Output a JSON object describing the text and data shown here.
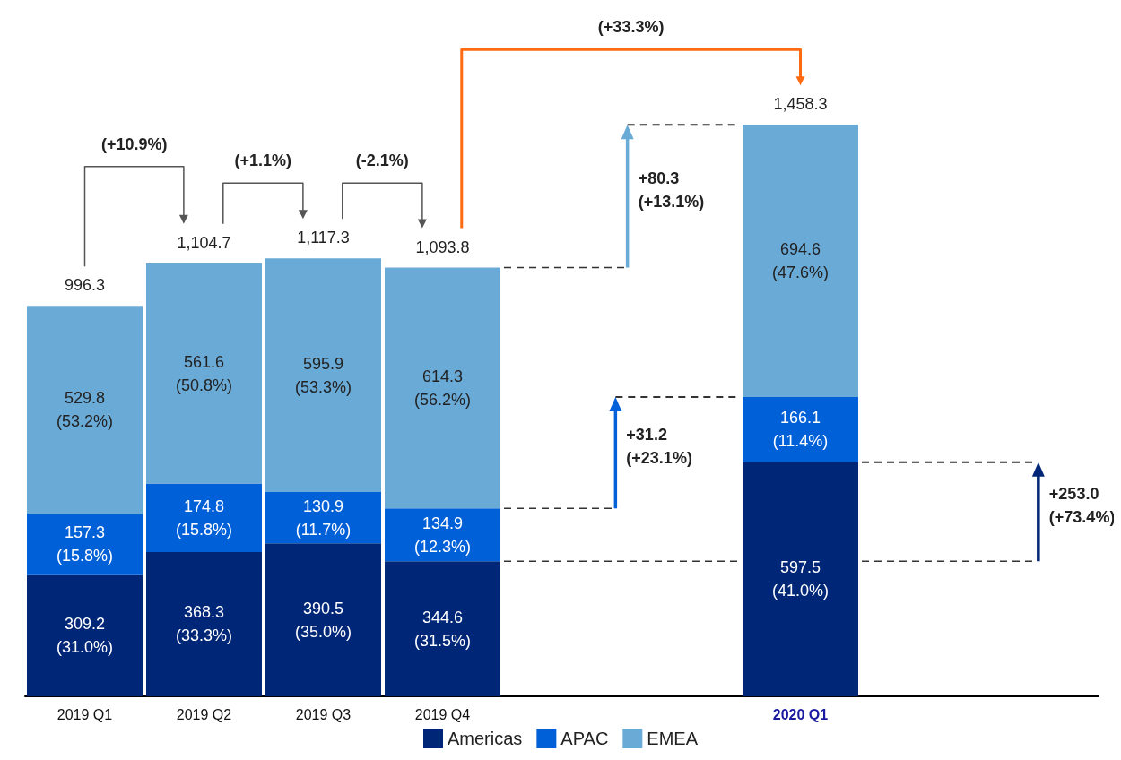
{
  "chart_data": {
    "type": "bar",
    "stacked": true,
    "legend": "bottom",
    "categories": [
      "2019 Q1",
      "2019 Q2",
      "2019 Q3",
      "2019 Q4",
      null,
      null,
      "2020 Q1",
      null,
      null
    ],
    "series": [
      {
        "name": "Americas",
        "color": "#002677",
        "values": [
          309.2,
          368.3,
          390.5,
          344.6,
          null,
          null,
          597.5,
          null,
          null
        ],
        "value_labels": [
          "309.2\n(31.0%)",
          "368.3\n(33.3%)",
          "390.5\n(35.0%)",
          "344.6\n(31.5%)",
          null,
          null,
          "597.5\n(41.0%)",
          null,
          null
        ]
      },
      {
        "name": "APAC",
        "color": "#0060d8",
        "values": [
          157.3,
          174.8,
          130.9,
          134.9,
          null,
          null,
          166.1,
          null,
          null
        ],
        "value_labels": [
          "157.3\n(15.8%)",
          "174.8\n(15.8%)",
          "130.9\n(11.7%)",
          "134.9\n(12.3%)",
          null,
          null,
          "166.1\n(11.4%)",
          null,
          null
        ]
      },
      {
        "name": "EMEA",
        "color": "#6aaad6",
        "values": [
          529.8,
          561.6,
          595.9,
          614.3,
          null,
          null,
          694.6,
          null,
          null
        ],
        "value_labels": [
          "529.8\n(53.2%)",
          "561.6\n(50.8%)",
          "595.9\n(53.3%)",
          "614.3\n(56.2%)",
          null,
          null,
          "694.6\n(47.6%)",
          null,
          null
        ]
      }
    ],
    "totals": [
      "996.3",
      "1,104.7",
      "1,117.3",
      "1,093.8",
      null,
      null,
      "1,458.3",
      null,
      null
    ],
    "ref_lines": [
      {
        "axis": "y",
        "value": 344.6,
        "color": "#333333",
        "line_style": "dashed"
      },
      {
        "axis": "y",
        "value": 597.5,
        "color": "#333333",
        "line_style": "dashed"
      },
      {
        "axis": "y",
        "value": 479.5,
        "color": "#333333",
        "line_style": "dashed"
      },
      {
        "axis": "y",
        "value": 763.6,
        "color": "#333333",
        "line_style": "dashed"
      },
      {
        "axis": "y",
        "value": 1093.8,
        "color": "#333333",
        "line_style": "dashed"
      },
      {
        "axis": "y",
        "value": 1458.3,
        "color": "#333333",
        "line_style": "dashed"
      }
    ],
    "annotations": [
      "(+10.9%)",
      "(+1.1%)",
      "(-2.1%)",
      "(+33.3%)",
      "+253.0\n(+73.4%)",
      "+31.2\n(+23.1%)",
      "+80.3\n(+13.1%)"
    ]
  }
}
